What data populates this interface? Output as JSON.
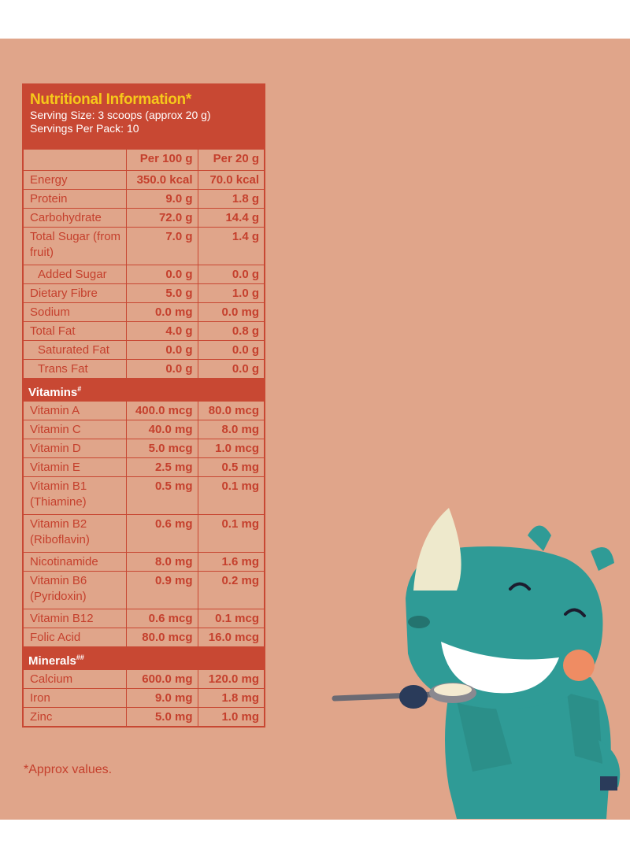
{
  "title": "Nutritional Information*",
  "serving_size": "Serving Size: 3 scoops (approx 20 g)",
  "servings_per_pack": "Servings Per Pack: 10",
  "columns": [
    "Per 100 g",
    "Per 20 g"
  ],
  "rows": [
    {
      "name": "Energy",
      "v1": "350.0 kcal",
      "v2": "70.0 kcal"
    },
    {
      "name": "Protein",
      "v1": "9.0 g",
      "v2": "1.8 g"
    },
    {
      "name": "Carbohydrate",
      "v1": "72.0 g",
      "v2": "14.4 g"
    },
    {
      "name": "Total Sugar (from fruit)",
      "v1": "7.0 g",
      "v2": "1.4 g"
    },
    {
      "name": "Added Sugar",
      "v1": "0.0 g",
      "v2": "0.0 g"
    },
    {
      "name": "Dietary Fibre",
      "v1": "5.0 g",
      "v2": "1.0 g"
    },
    {
      "name": "Sodium",
      "v1": "0.0 mg",
      "v2": "0.0 mg"
    },
    {
      "name": "Total Fat",
      "v1": "4.0 g",
      "v2": "0.8 g"
    },
    {
      "name": "Saturated Fat",
      "v1": "0.0 g",
      "v2": "0.0 g"
    },
    {
      "name": "Trans Fat",
      "v1": "0.0 g",
      "v2": "0.0 g"
    }
  ],
  "vitamins_heading": "Vitamins",
  "vitamins_mark": "#",
  "vitamins": [
    {
      "name": "Vitamin A",
      "v1": "400.0 mcg",
      "v2": "80.0 mcg"
    },
    {
      "name": "Vitamin C",
      "v1": "40.0 mg",
      "v2": "8.0 mg"
    },
    {
      "name": "Vitamin D",
      "v1": "5.0 mcg",
      "v2": "1.0 mcg"
    },
    {
      "name": "Vitamin E",
      "v1": "2.5 mg",
      "v2": "0.5 mg"
    },
    {
      "name": "Vitamin B1 (Thiamine)",
      "v1": "0.5 mg",
      "v2": "0.1 mg"
    },
    {
      "name": "Vitamin B2 (Riboflavin)",
      "v1": "0.6 mg",
      "v2": "0.1 mg"
    },
    {
      "name": "Nicotinamide",
      "v1": "8.0 mg",
      "v2": "1.6 mg"
    },
    {
      "name": "Vitamin B6 (Pyridoxin)",
      "v1": "0.9 mg",
      "v2": "0.2 mg"
    },
    {
      "name": "Vitamin B12",
      "v1": "0.6 mcg",
      "v2": "0.1 mcg"
    },
    {
      "name": "Folic Acid",
      "v1": "80.0 mcg",
      "v2": "16.0 mcg"
    }
  ],
  "minerals_heading": "Minerals",
  "minerals_mark": "##",
  "minerals": [
    {
      "name": "Calcium",
      "v1": "600.0 mg",
      "v2": "120.0 mg"
    },
    {
      "name": "Iron",
      "v1": "9.0 mg",
      "v2": "1.8 mg"
    },
    {
      "name": "Zinc",
      "v1": "5.0 mg",
      "v2": "1.0 mg"
    }
  ],
  "footnote": "*Approx values.",
  "colors": {
    "background": "#e0a58a",
    "label_red": "#c84833",
    "title_yellow": "#f6c81a",
    "mascot_teal": "#2f9b96"
  },
  "illustration": "rhino-mascot-eating-with-spoon"
}
